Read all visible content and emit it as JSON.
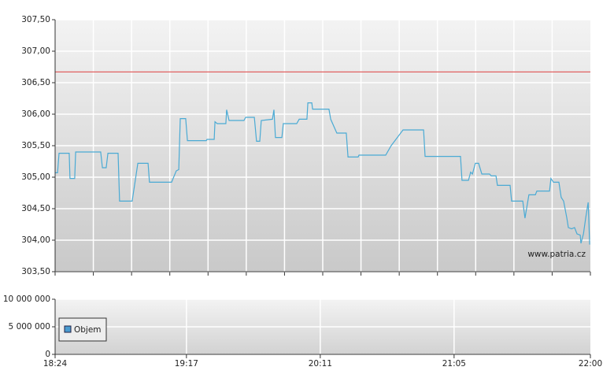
{
  "chart_data": [
    {
      "type": "line",
      "xlim": [
        1104,
        1320
      ],
      "ylim": [
        303.5,
        307.5
      ],
      "yticks": [
        {
          "value": 303.5,
          "label": "303,50"
        },
        {
          "value": 304,
          "label": "304,00"
        },
        {
          "value": 304.5,
          "label": "304,50"
        },
        {
          "value": 305,
          "label": "305,00"
        },
        {
          "value": 305.5,
          "label": "305,50"
        },
        {
          "value": 306,
          "label": "306,00"
        },
        {
          "value": 306.5,
          "label": "306,50"
        },
        {
          "value": 307,
          "label": "307,00"
        },
        {
          "value": 307.5,
          "label": "307,50"
        }
      ],
      "grid": true,
      "color": "#4aaad4",
      "reference_line": {
        "value": 306.67,
        "color": "#e06060"
      },
      "watermark": "www.patria.cz",
      "x": [
        1104,
        1105.0,
        1105.6,
        1109.7,
        1110.0,
        1111.9,
        1112.3,
        1122.4,
        1123.1,
        1124.6,
        1125.3,
        1129.4,
        1130.0,
        1135.1,
        1137.4,
        1141.5,
        1142.1,
        1151.0,
        1152.9,
        1153.9,
        1154.5,
        1156.7,
        1157.4,
        1165.0,
        1165.3,
        1168.2,
        1168.5,
        1169.4,
        1172.9,
        1173.2,
        1174.2,
        1180.2,
        1180.9,
        1184.4,
        1185.3,
        1186.6,
        1187.2,
        1191.7,
        1192.3,
        1192.9,
        1195.5,
        1196.1,
        1201.5,
        1202.5,
        1205.6,
        1206.0,
        1207.6,
        1207.9,
        1214.5,
        1215.2,
        1217.7,
        1221.5,
        1222.2,
        1226.3,
        1226.6,
        1237.4,
        1239.6,
        1244.4,
        1252.7,
        1253.3,
        1267.6,
        1268.2,
        1270.8,
        1271.7,
        1272.4,
        1273.6,
        1274.9,
        1276.2,
        1279.3,
        1280.0,
        1281.9,
        1282.5,
        1287.6,
        1288.2,
        1292.7,
        1293.6,
        1295.2,
        1297.8,
        1298.4,
        1303.5,
        1304.1,
        1305.1,
        1307.3,
        1308.2,
        1309.2,
        1310.5,
        1311.1,
        1312.4,
        1313.6,
        1314.6,
        1315.9,
        1316.2,
        1317.2,
        1318.1,
        1319.1,
        1319.7
      ],
      "values": [
        305.07,
        305.07,
        305.38,
        305.38,
        304.98,
        304.98,
        305.4,
        305.4,
        305.15,
        305.15,
        305.38,
        305.38,
        304.62,
        304.62,
        305.22,
        305.22,
        304.92,
        304.92,
        305.1,
        305.12,
        305.93,
        305.93,
        305.58,
        305.58,
        305.6,
        305.6,
        305.88,
        305.85,
        305.85,
        306.07,
        305.9,
        305.9,
        305.95,
        305.95,
        305.57,
        305.57,
        305.9,
        305.92,
        306.07,
        305.63,
        305.63,
        305.85,
        305.85,
        305.92,
        305.92,
        306.18,
        306.18,
        306.08,
        306.08,
        305.92,
        305.7,
        305.7,
        305.32,
        305.32,
        305.35,
        305.35,
        305.5,
        305.75,
        305.75,
        305.33,
        305.33,
        304.95,
        304.95,
        305.08,
        305.05,
        305.22,
        305.22,
        305.05,
        305.05,
        305.02,
        305.02,
        304.87,
        304.87,
        304.62,
        304.62,
        304.35,
        304.72,
        304.72,
        304.78,
        304.78,
        304.98,
        304.92,
        304.92,
        304.68,
        304.62,
        304.35,
        304.2,
        304.18,
        304.2,
        304.1,
        304.08,
        303.95,
        304.1,
        304.35,
        304.6,
        303.93
      ]
    },
    {
      "type": "bar",
      "xlim": [
        1104,
        1320
      ],
      "xticks": [
        {
          "value": 1104,
          "label": "18:24"
        },
        {
          "value": 1157,
          "label": "19:17"
        },
        {
          "value": 1211,
          "label": "20:11"
        },
        {
          "value": 1265,
          "label": "21:05"
        },
        {
          "value": 1320,
          "label": "22:00"
        }
      ],
      "ylim": [
        0,
        10000000
      ],
      "yticks": [
        {
          "value": 0,
          "label": "0"
        },
        {
          "value": 5000000,
          "label": "5 000 000"
        },
        {
          "value": 10000000,
          "label": "10 000 000"
        }
      ],
      "grid": true,
      "series": [
        {
          "name": "Objem",
          "color": "#4a9bd0"
        }
      ]
    }
  ]
}
